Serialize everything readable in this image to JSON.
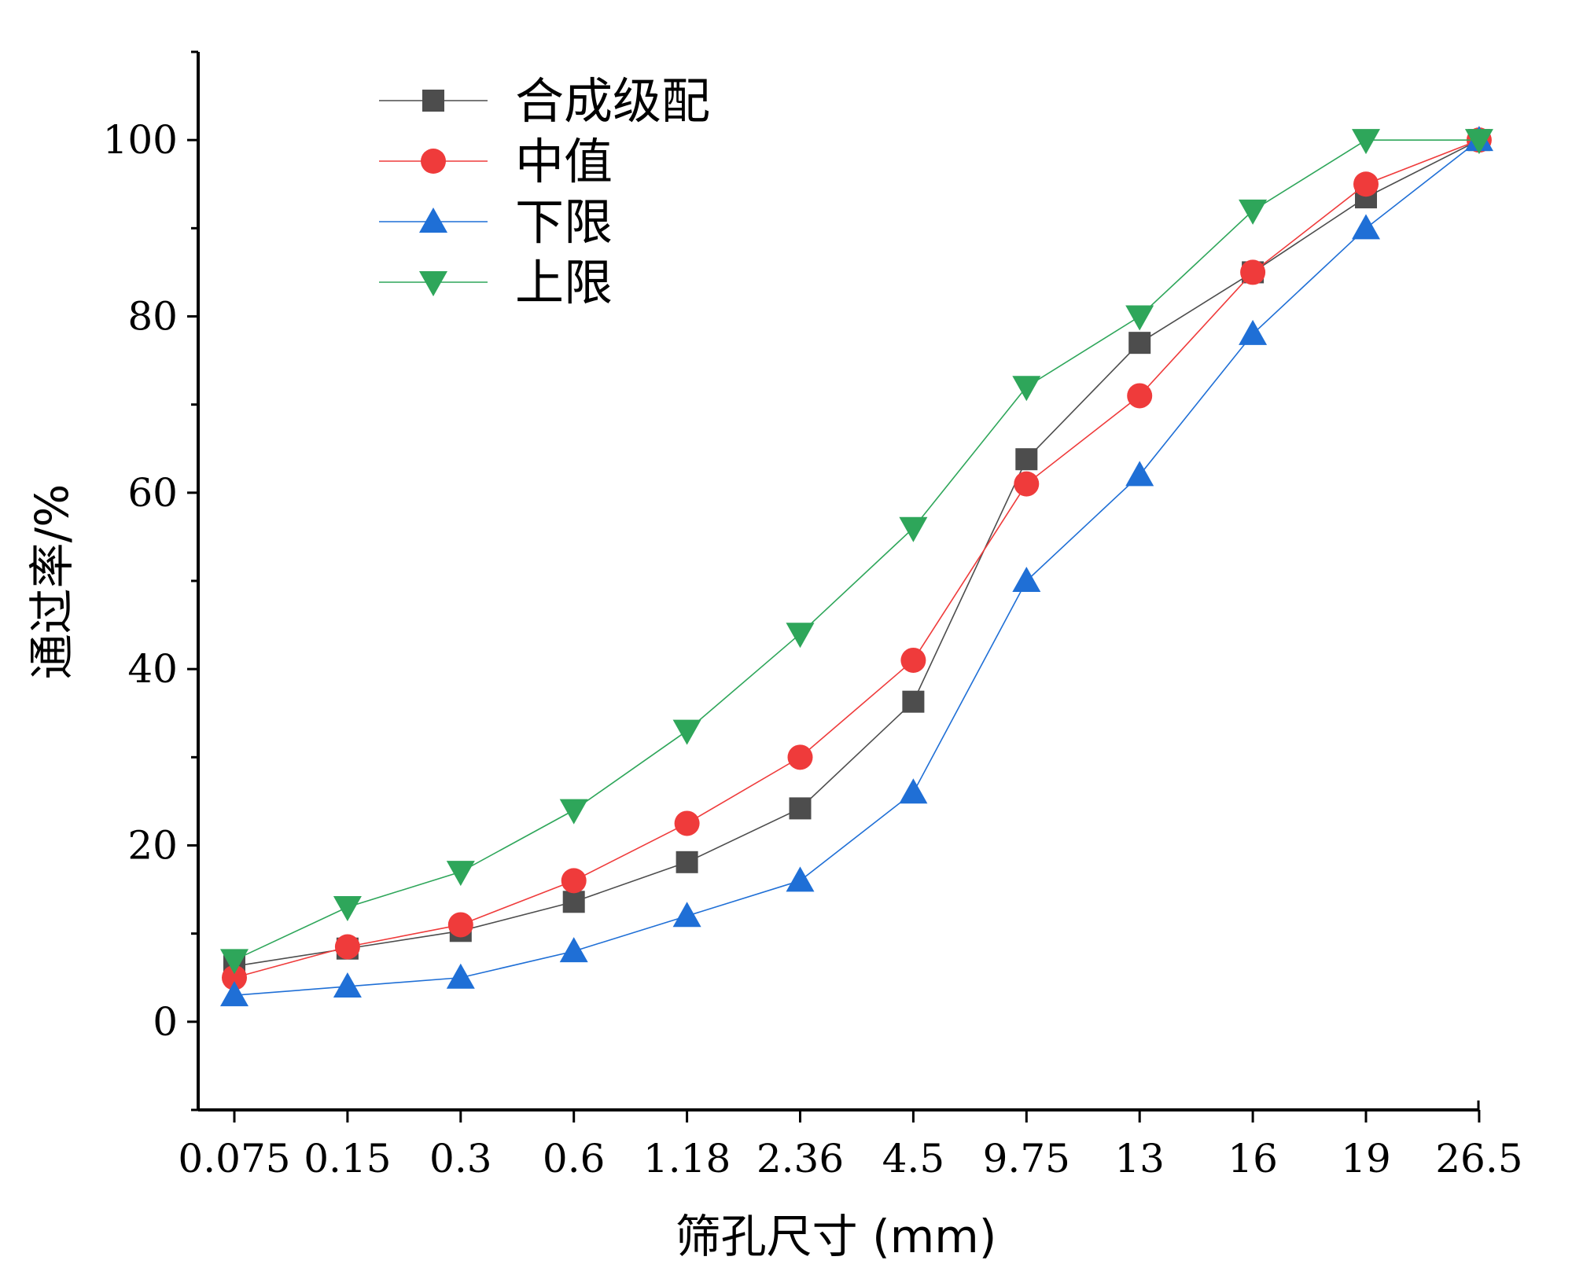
{
  "chart_data": {
    "type": "line",
    "title": "",
    "xlabel": "筛孔尺寸 (mm)",
    "ylabel": "通过率/%",
    "categories": [
      "0.075",
      "0.15",
      "0.3",
      "0.6",
      "1.18",
      "2.36",
      "4.5",
      "9.75",
      "13",
      "16",
      "19",
      "26.5"
    ],
    "ylim": [
      -10,
      110
    ],
    "yticks": [
      0,
      20,
      40,
      60,
      80,
      100
    ],
    "legend_position": "top-left",
    "grid": false,
    "series": [
      {
        "name": "合成级配",
        "color": "#4d4d4d",
        "marker": "square",
        "values": [
          6.3,
          8.3,
          10.3,
          13.6,
          18.1,
          24.2,
          36.3,
          63.8,
          77.0,
          85.0,
          93.5,
          100
        ]
      },
      {
        "name": "中值",
        "color": "#ef3b3b",
        "marker": "circle",
        "values": [
          5.0,
          8.5,
          11.0,
          16.0,
          22.5,
          30.0,
          41.0,
          61.0,
          71.0,
          85.0,
          95.0,
          100
        ]
      },
      {
        "name": "下限",
        "color": "#1f6fd6",
        "marker": "triangle-up",
        "values": [
          3.0,
          4.0,
          5.0,
          8.0,
          12.0,
          16.0,
          26.0,
          50.0,
          62.0,
          78.0,
          90.0,
          100
        ]
      },
      {
        "name": "上限",
        "color": "#2ea65a",
        "marker": "triangle-down",
        "values": [
          7.0,
          13.0,
          17.0,
          24.0,
          33.0,
          44.0,
          56.0,
          72.0,
          80.0,
          92.0,
          100.0,
          100
        ]
      }
    ]
  }
}
